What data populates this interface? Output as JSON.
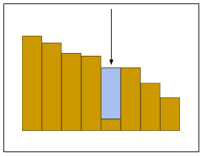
{
  "chart_data": {
    "type": "bar",
    "categories": [
      null,
      null,
      null,
      null,
      null,
      null,
      null,
      null
    ],
    "series": [
      {
        "color": "#cc9900",
        "values": [
          137,
          127,
          112,
          108,
          17,
          91,
          69,
          48
        ]
      },
      {
        "color": "#a8c0f0",
        "values": [
          null,
          null,
          null,
          null,
          74,
          null,
          null,
          null
        ]
      }
    ],
    "ylim": [
      0,
      150
    ],
    "stacked": true,
    "grid": false,
    "tick_labels": false
  }
}
